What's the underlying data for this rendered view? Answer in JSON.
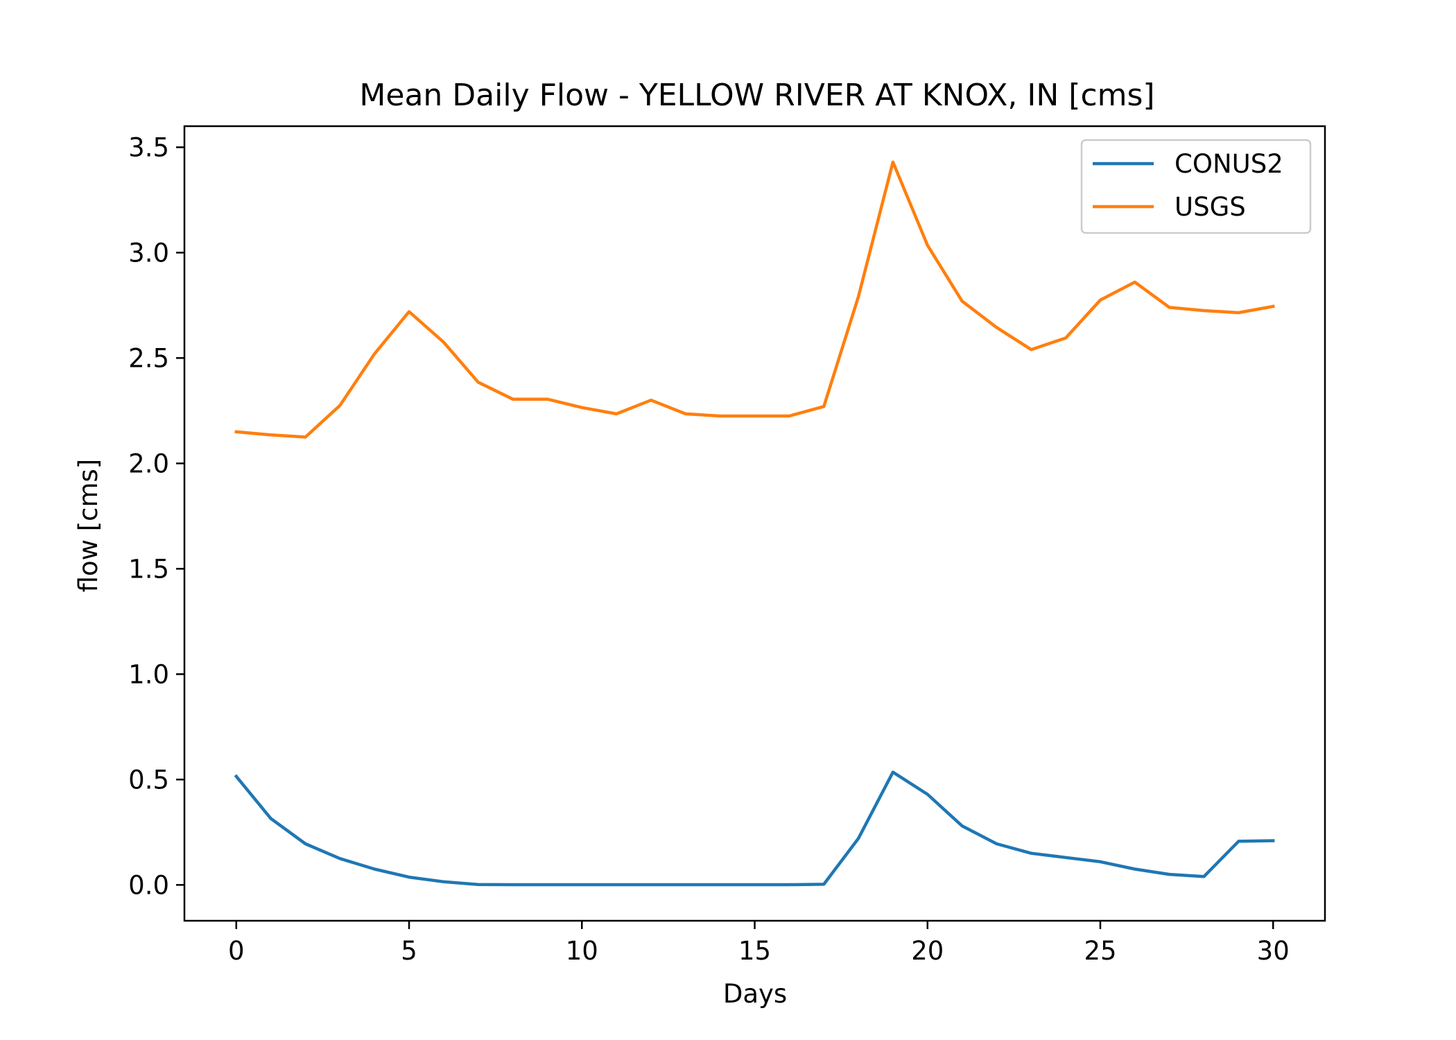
{
  "chart_data": {
    "type": "line",
    "title": "Mean Daily Flow - YELLOW RIVER AT KNOX, IN [cms]",
    "xlabel": "Days",
    "ylabel": "flow [cms]",
    "xlim": [
      -1.5,
      31.5
    ],
    "ylim": [
      -0.17,
      3.6
    ],
    "xticks": [
      0,
      5,
      10,
      15,
      20,
      25,
      30
    ],
    "xtick_labels": [
      "0",
      "5",
      "10",
      "15",
      "20",
      "25",
      "30"
    ],
    "yticks": [
      0.0,
      0.5,
      1.0,
      1.5,
      2.0,
      2.5,
      3.0,
      3.5
    ],
    "ytick_labels": [
      "0.0",
      "0.5",
      "1.0",
      "1.5",
      "2.0",
      "2.5",
      "3.0",
      "3.5"
    ],
    "grid": false,
    "legend_position": "top-right",
    "x": [
      0,
      1,
      2,
      3,
      4,
      5,
      6,
      7,
      8,
      9,
      10,
      11,
      12,
      13,
      14,
      15,
      16,
      17,
      18,
      19,
      20,
      21,
      22,
      23,
      24,
      25,
      26,
      27,
      28,
      29,
      30
    ],
    "series": [
      {
        "name": "CONUS2",
        "color": "#1f77b4",
        "values": [
          0.515,
          0.315,
          0.195,
          0.125,
          0.075,
          0.037,
          0.015,
          0.002,
          0.001,
          0.001,
          0.001,
          0.001,
          0.001,
          0.001,
          0.001,
          0.001,
          0.001,
          0.003,
          0.22,
          0.535,
          0.43,
          0.28,
          0.195,
          0.15,
          0.13,
          0.11,
          0.075,
          0.05,
          0.04,
          0.207,
          0.21
        ]
      },
      {
        "name": "USGS",
        "color": "#ff7f0e",
        "values": [
          2.15,
          2.135,
          2.125,
          2.275,
          2.52,
          2.72,
          2.575,
          2.385,
          2.305,
          2.305,
          2.265,
          2.235,
          2.3,
          2.235,
          2.225,
          2.225,
          2.225,
          2.27,
          2.79,
          3.43,
          3.035,
          2.77,
          2.645,
          2.54,
          2.595,
          2.775,
          2.86,
          2.74,
          2.725,
          2.715,
          2.745
        ]
      }
    ]
  }
}
